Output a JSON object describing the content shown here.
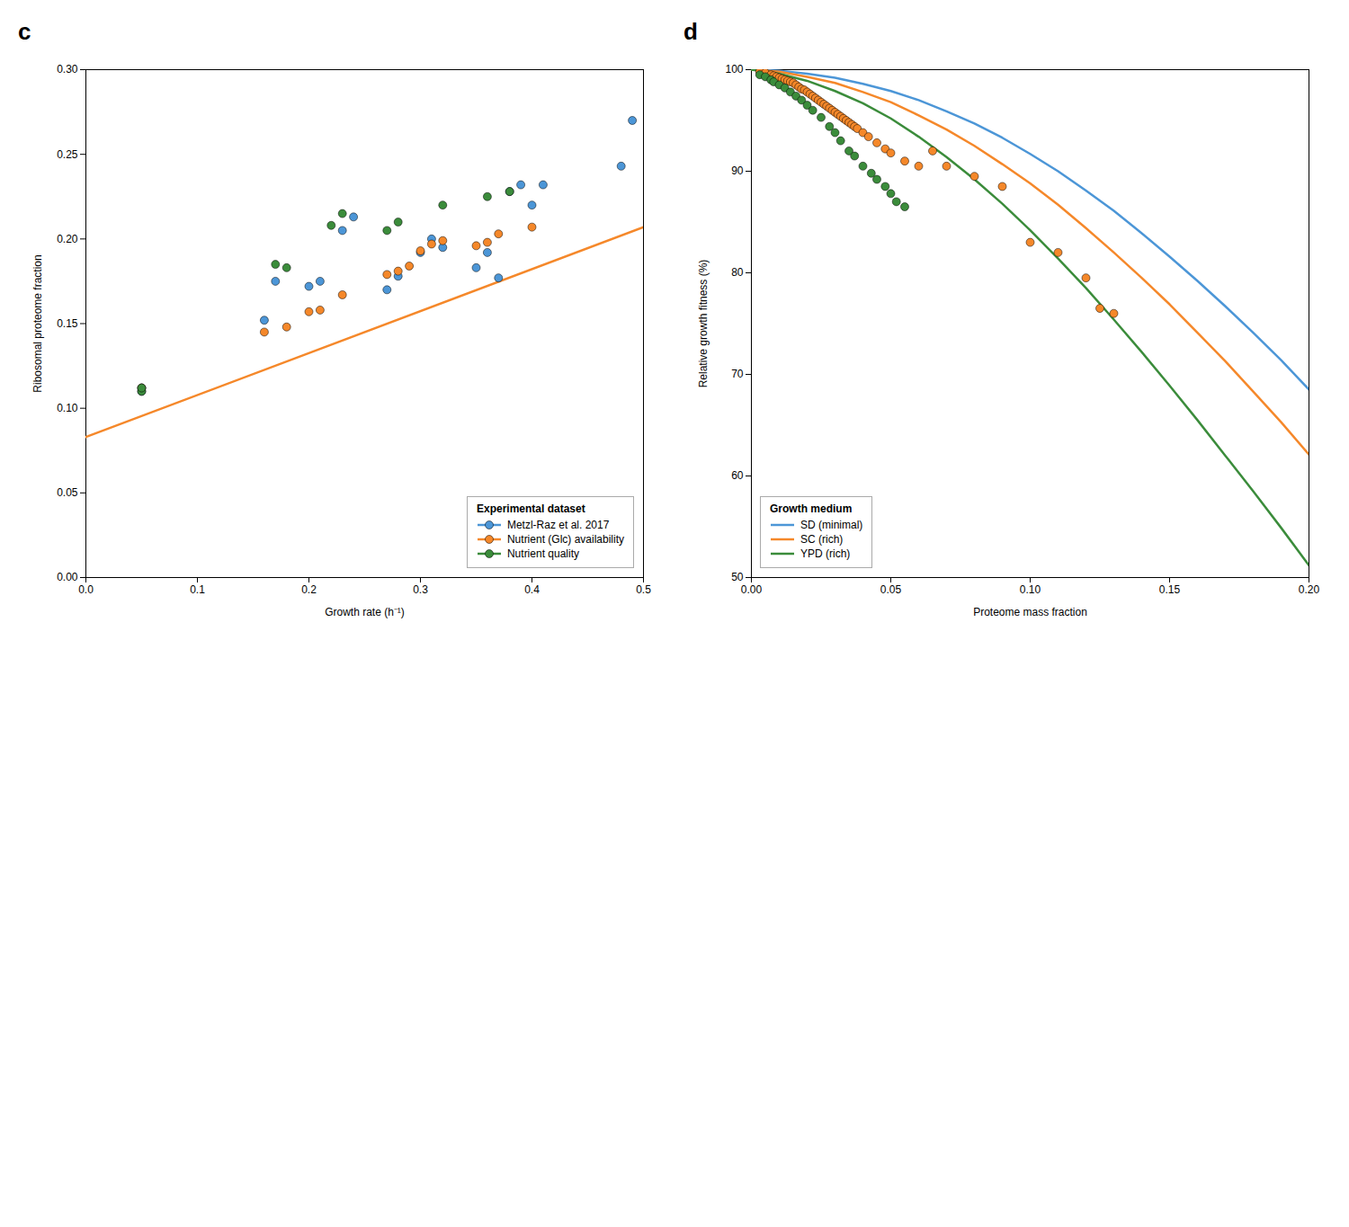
{
  "chart_data": [
    {
      "type": "scatter",
      "title": "c",
      "xlabel": "Growth rate (h⁻¹)",
      "ylabel": "Ribosomal proteome fraction",
      "xlim": [
        0.0,
        0.5
      ],
      "ylim": [
        0.0,
        0.3
      ],
      "xticks": [
        {
          "value": 0.0,
          "label": "0.0"
        },
        0.1,
        0.2,
        0.3,
        0.4,
        0.5
      ],
      "yticks": [
        {
          "value": 0.0,
          "label": "0.00"
        },
        0.05,
        {
          "value": 0.1,
          "label": "0.10"
        },
        0.15,
        {
          "value": 0.2,
          "label": "0.20"
        },
        0.25,
        {
          "value": 0.3,
          "label": "0.30"
        }
      ],
      "legend": "lower right",
      "legend_title": "Experimental dataset",
      "series": [
        {
          "name": "Metzl-Raz et al. 2017",
          "type": "scatter",
          "marker": "circle",
          "color": "#4C96D7",
          "x": [
            0.05,
            0.05,
            0.16,
            0.17,
            0.2,
            0.21,
            0.23,
            0.24,
            0.27,
            0.28,
            0.3,
            0.31,
            0.32,
            0.35,
            0.36,
            0.37,
            0.38,
            0.39,
            0.4,
            0.41,
            0.48,
            0.49
          ],
          "values": [
            0.11,
            0.112,
            0.152,
            0.175,
            0.172,
            0.175,
            0.205,
            0.213,
            0.17,
            0.178,
            0.192,
            0.2,
            0.195,
            0.183,
            0.192,
            0.177,
            0.228,
            0.232,
            0.22,
            0.232,
            0.243,
            0.27
          ]
        },
        {
          "name": "Nutrient (Glc) availability",
          "type": "scatter",
          "marker": "circle",
          "color": "#F5882A",
          "x": [
            0.05,
            0.16,
            0.18,
            0.2,
            0.21,
            0.23,
            0.27,
            0.28,
            0.29,
            0.3,
            0.31,
            0.32,
            0.35,
            0.36,
            0.37,
            0.4
          ],
          "values": [
            0.112,
            0.145,
            0.148,
            0.157,
            0.158,
            0.167,
            0.179,
            0.181,
            0.184,
            0.193,
            0.197,
            0.199,
            0.196,
            0.198,
            0.203,
            0.207
          ]
        },
        {
          "name": "Nutrient quality",
          "type": "scatter",
          "marker": "circle",
          "color": "#3B8C3B",
          "x": [
            0.05,
            0.05,
            0.17,
            0.18,
            0.22,
            0.23,
            0.27,
            0.28,
            0.32,
            0.36,
            0.38
          ],
          "values": [
            0.11,
            0.112,
            0.185,
            0.183,
            0.208,
            0.215,
            0.205,
            0.21,
            0.22,
            0.225,
            0.228
          ]
        },
        {
          "type": "line",
          "color": "#F5882A",
          "x": [
            0.0,
            0.5
          ],
          "values": [
            0.083,
            0.207
          ]
        }
      ]
    },
    {
      "type": "scatter",
      "title": "d",
      "xlabel": "Proteome mass fraction",
      "ylabel": "Relative growth fitness (%)",
      "xlim": [
        0.0,
        0.2
      ],
      "ylim": [
        50,
        100
      ],
      "xticks": [
        {
          "value": 0.0,
          "label": "0.00"
        },
        0.05,
        {
          "value": 0.1,
          "label": "0.10"
        },
        0.15,
        {
          "value": 0.2,
          "label": "0.20"
        }
      ],
      "yticks": [
        50,
        60,
        70,
        80,
        90,
        100
      ],
      "legend": "lower left",
      "legend_title": "Growth medium",
      "series": [
        {
          "type": "scatter",
          "marker": "circle",
          "color": "#F5882A",
          "x": [
            0.003,
            0.005,
            0.007,
            0.008,
            0.009,
            0.01,
            0.011,
            0.012,
            0.013,
            0.014,
            0.015,
            0.016,
            0.017,
            0.018,
            0.019,
            0.02,
            0.021,
            0.022,
            0.023,
            0.024,
            0.025,
            0.026,
            0.027,
            0.028,
            0.029,
            0.03,
            0.031,
            0.032,
            0.033,
            0.034,
            0.035,
            0.036,
            0.037,
            0.038,
            0.04,
            0.042,
            0.045,
            0.048,
            0.05,
            0.055,
            0.06,
            0.065,
            0.07,
            0.08,
            0.09,
            0.1,
            0.11,
            0.12,
            0.125,
            0.13
          ],
          "values": [
            99.8,
            99.7,
            99.5,
            99.4,
            99.3,
            99.2,
            99.1,
            99.0,
            98.9,
            98.8,
            98.7,
            98.5,
            98.3,
            98.1,
            98.0,
            97.8,
            97.6,
            97.4,
            97.2,
            97.0,
            96.8,
            96.6,
            96.4,
            96.2,
            96.0,
            95.8,
            95.6,
            95.4,
            95.2,
            95.0,
            94.8,
            94.6,
            94.4,
            94.2,
            93.8,
            93.4,
            92.8,
            92.2,
            91.8,
            91.0,
            90.5,
            92.0,
            90.5,
            89.5,
            88.5,
            83.0,
            82.0,
            79.5,
            76.5,
            76.0
          ]
        },
        {
          "type": "scatter",
          "marker": "circle",
          "color": "#3B8C3B",
          "x": [
            0.003,
            0.005,
            0.007,
            0.008,
            0.01,
            0.012,
            0.014,
            0.016,
            0.018,
            0.02,
            0.022,
            0.025,
            0.028,
            0.03,
            0.032,
            0.035,
            0.037,
            0.04,
            0.043,
            0.045,
            0.048,
            0.05,
            0.052,
            0.055
          ],
          "values": [
            99.5,
            99.3,
            99.0,
            98.8,
            98.5,
            98.2,
            97.8,
            97.4,
            97.0,
            96.5,
            96.0,
            95.3,
            94.4,
            93.8,
            93.0,
            92.0,
            91.5,
            90.5,
            89.8,
            89.2,
            88.5,
            87.8,
            87.0,
            86.5
          ]
        },
        {
          "name": "SD (minimal)",
          "type": "line",
          "color": "#4C96D7",
          "x": [
            0.0,
            0.01,
            0.02,
            0.03,
            0.04,
            0.05,
            0.06,
            0.07,
            0.08,
            0.09,
            0.1,
            0.11,
            0.12,
            0.13,
            0.14,
            0.15,
            0.16,
            0.17,
            0.18,
            0.19,
            0.2
          ],
          "values": [
            100.0,
            99.9,
            99.6,
            99.2,
            98.6,
            97.9,
            97.0,
            95.9,
            94.7,
            93.3,
            91.7,
            90.0,
            88.1,
            86.1,
            83.9,
            81.6,
            79.2,
            76.7,
            74.1,
            71.4,
            68.5
          ]
        },
        {
          "name": "SC (rich)",
          "type": "line",
          "color": "#F5882A",
          "x": [
            0.0,
            0.01,
            0.02,
            0.03,
            0.04,
            0.05,
            0.06,
            0.07,
            0.08,
            0.09,
            0.1,
            0.11,
            0.12,
            0.13,
            0.14,
            0.15,
            0.16,
            0.17,
            0.18,
            0.19,
            0.2
          ],
          "values": [
            100.0,
            99.8,
            99.3,
            98.7,
            97.8,
            96.8,
            95.5,
            94.1,
            92.5,
            90.7,
            88.8,
            86.7,
            84.4,
            82.0,
            79.5,
            76.9,
            74.1,
            71.3,
            68.3,
            65.3,
            62.1
          ]
        },
        {
          "name": "YPD (rich)",
          "type": "line",
          "color": "#3B8C3B",
          "x": [
            0.0,
            0.01,
            0.02,
            0.03,
            0.04,
            0.05,
            0.06,
            0.07,
            0.08,
            0.09,
            0.1,
            0.11,
            0.12,
            0.13,
            0.14,
            0.15,
            0.16,
            0.17,
            0.18,
            0.19,
            0.2
          ],
          "values": [
            100.0,
            99.6,
            98.9,
            97.9,
            96.7,
            95.2,
            93.4,
            91.4,
            89.2,
            86.8,
            84.2,
            81.4,
            78.5,
            75.4,
            72.2,
            68.9,
            65.5,
            62.0,
            58.5,
            54.9,
            51.2
          ]
        }
      ]
    }
  ]
}
